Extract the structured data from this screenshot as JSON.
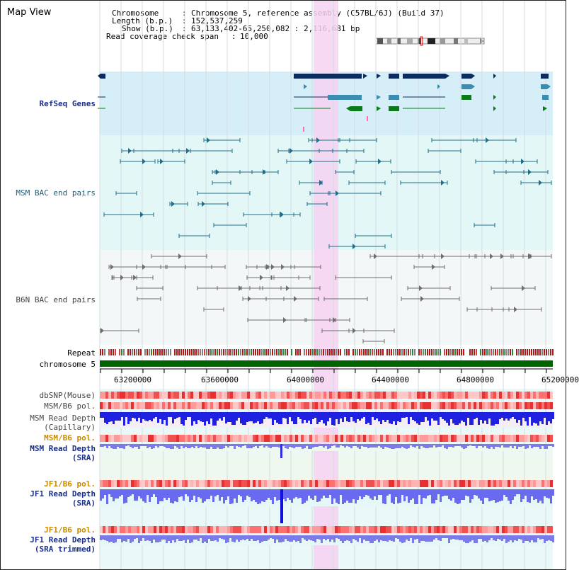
{
  "view_title": "Map View",
  "info": {
    "chromosome_label": "Chromosome",
    "chromosome_value": "Chromosome 5, reference assembly (C57BL/6J) (Build 37)",
    "length_label": "Length (b.p.)",
    "length_value": "152,537,259",
    "show_label": "Show (b.p.)",
    "show_value": "63,133,402-65,250,082 : 2,116,681 bp",
    "coverage_label": "Read coverage check span",
    "coverage_value": "10,000"
  },
  "tracks": {
    "refseq": "RefSeq Genes",
    "msm_bac": "MSM BAC end pairs",
    "b6n_bac": "B6N BAC end pairs",
    "repeat": "Repeat",
    "chromosome": "chromosome 5",
    "dbsnp": "dbSNP(Mouse)",
    "msm_b6_pol_1": "MSM/B6 pol.",
    "msm_read_cap_1": "MSM Read Depth",
    "msm_read_cap_2": "(Capillary)",
    "msm_b6_pol_2": "MSM/B6 pol.",
    "msm_read_sra_1": "MSM Read Depth",
    "msm_read_sra_2": "(SRA)",
    "jf1_b6_pol_1": "JF1/B6 pol.",
    "jf1_read_sra_1": "JF1 Read Depth",
    "jf1_read_sra_2": "(SRA)",
    "jf1_b6_pol_2": "JF1/B6 pol.",
    "jf1_read_trim_1": "JF1 Read Depth",
    "jf1_read_trim_2": "(SRA trimmed)"
  },
  "axis": {
    "ticks": [
      "63200000",
      "63600000",
      "64000000",
      "64400000",
      "64800000",
      "65200000"
    ]
  },
  "colors": {
    "refseq_bg": "#d6eef8",
    "bac_bg": "#e3f7f7",
    "highlight": "#f6d2f2",
    "chromosome_bar": "#006400",
    "gene_dark": "#0d2c5e",
    "gene_teal": "#3a8db0",
    "gene_green": "#0a7a1a"
  }
}
